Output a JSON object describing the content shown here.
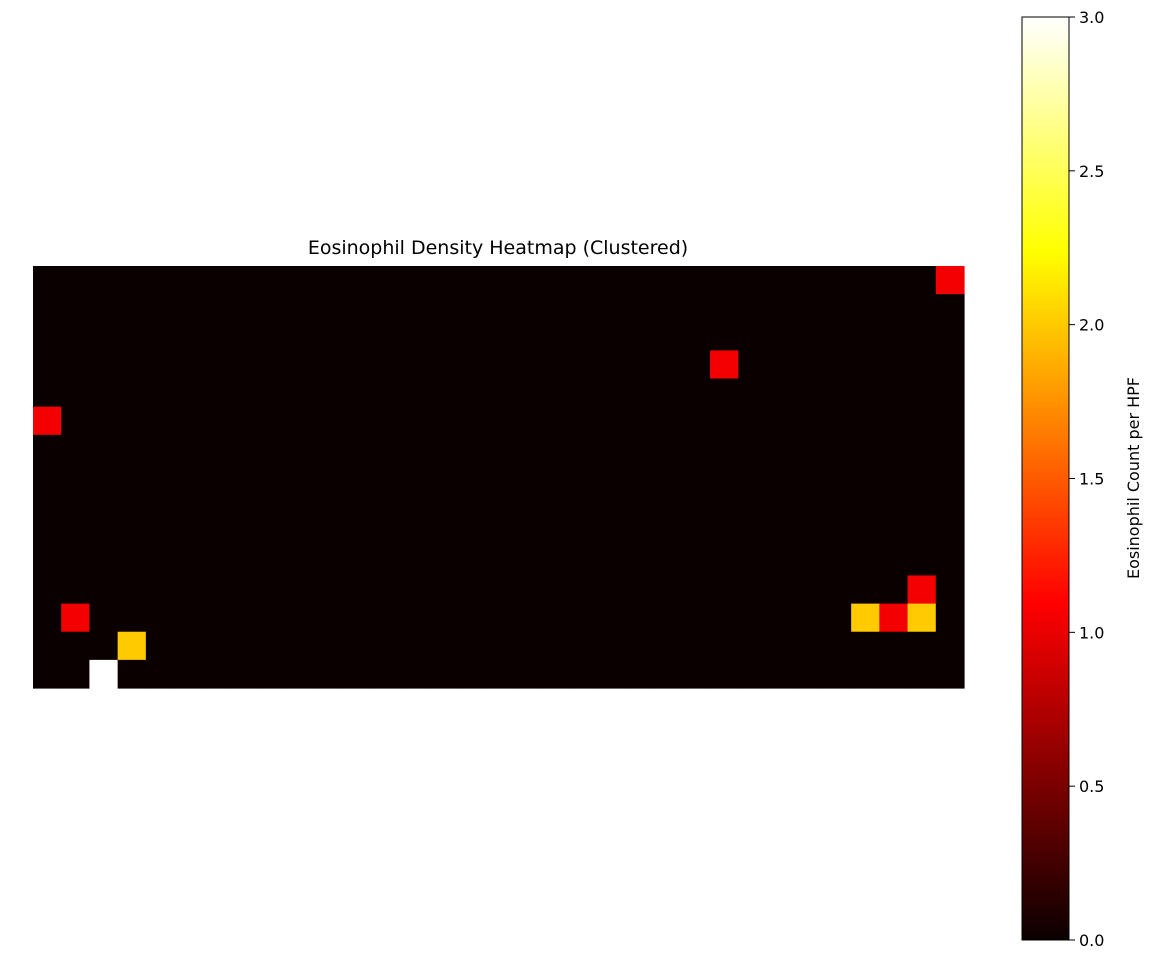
{
  "chart_data": {
    "type": "heatmap",
    "title": "Eosinophil Density Heatmap (Clustered)",
    "xlabel": "",
    "ylabel": "",
    "grid": false,
    "rows": 15,
    "cols": 33,
    "default_value": 0,
    "cells": [
      {
        "row": 0,
        "col": 32,
        "value": 1
      },
      {
        "row": 3,
        "col": 24,
        "value": 1
      },
      {
        "row": 5,
        "col": 0,
        "value": 1
      },
      {
        "row": 11,
        "col": 31,
        "value": 1
      },
      {
        "row": 12,
        "col": 1,
        "value": 1
      },
      {
        "row": 12,
        "col": 29,
        "value": 2
      },
      {
        "row": 12,
        "col": 30,
        "value": 1
      },
      {
        "row": 12,
        "col": 31,
        "value": 2
      },
      {
        "row": 13,
        "col": 3,
        "value": 2
      },
      {
        "row": 14,
        "col": 2,
        "value": 3
      }
    ],
    "colormap": "hot",
    "colorbar": {
      "label": "Eosinophil Count per HPF",
      "range": [
        0,
        3
      ],
      "ticks": [
        "0.0",
        "0.5",
        "1.0",
        "1.5",
        "2.0",
        "2.5",
        "3.0"
      ],
      "placement": "right"
    }
  }
}
